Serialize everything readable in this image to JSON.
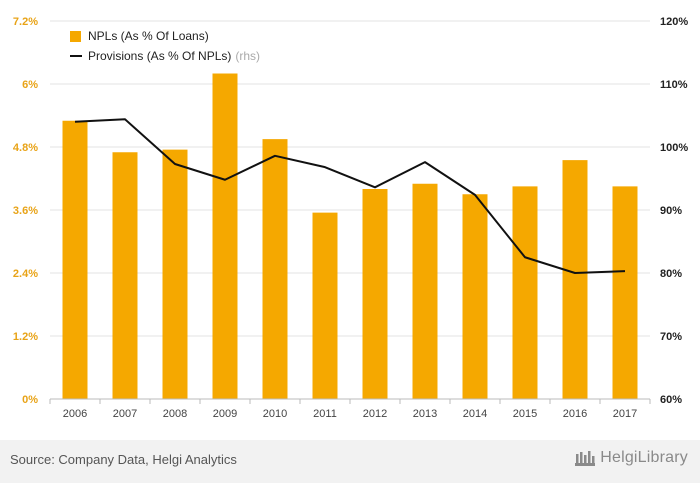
{
  "chart_data": {
    "type": "bar",
    "categories": [
      "2006",
      "2007",
      "2008",
      "2009",
      "2010",
      "2011",
      "2012",
      "2013",
      "2014",
      "2015",
      "2016",
      "2017"
    ],
    "series": [
      {
        "name": "NPLs (As % Of Loans)",
        "type": "bar",
        "axis": "left",
        "color": "#f5a800",
        "values": [
          5.3,
          4.7,
          4.75,
          6.2,
          4.95,
          3.55,
          4.0,
          4.1,
          3.9,
          4.05,
          4.55,
          4.05
        ]
      },
      {
        "name": "Provisions (As % Of NPLs)",
        "legend_suffix": "(rhs)",
        "type": "line",
        "axis": "right",
        "color": "#111111",
        "values": [
          104,
          104.4,
          97.3,
          94.8,
          98.6,
          96.8,
          93.6,
          97.6,
          92.4,
          82.5,
          80,
          80.3
        ]
      }
    ],
    "left_axis": {
      "ylim": [
        0,
        7.2
      ],
      "ticks": [
        0,
        1.2,
        2.4,
        3.6,
        4.8,
        6,
        7.2
      ],
      "tick_labels": [
        "0%",
        "1.2%",
        "2.4%",
        "3.6%",
        "4.8%",
        "6%",
        "7.2%"
      ],
      "color": "#e8a317"
    },
    "right_axis": {
      "ylim": [
        60,
        120
      ],
      "ticks": [
        60,
        70,
        80,
        90,
        100,
        110,
        120
      ],
      "tick_labels": [
        "60%",
        "70%",
        "80%",
        "90%",
        "100%",
        "110%",
        "120%"
      ],
      "color": "#222222"
    },
    "grid": true,
    "legend_position": "top-left"
  },
  "footer": {
    "source": "Source: Company Data, Helgi Analytics",
    "brand": "HelgiLibrary"
  }
}
